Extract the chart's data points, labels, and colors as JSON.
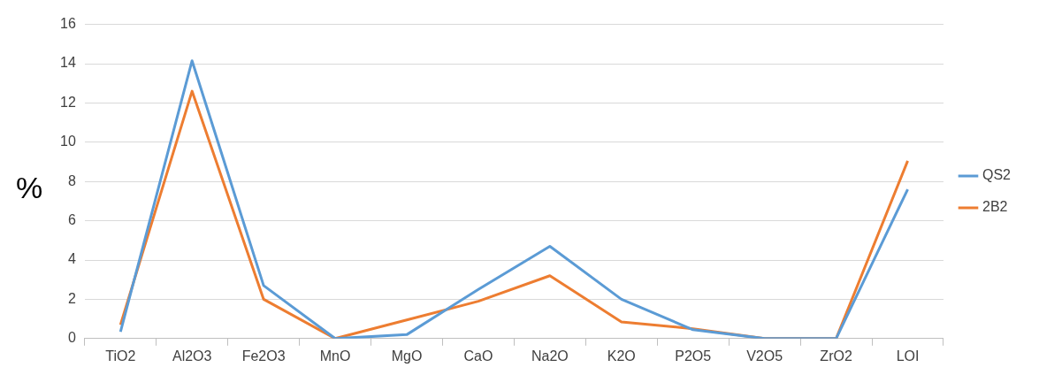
{
  "chart_data": {
    "type": "line",
    "ylabel": "%",
    "categories": [
      "TiO2",
      "Al2O3",
      "Fe2O3",
      "MnO",
      "MgO",
      "CaO",
      "Na2O",
      "K2O",
      "P2O5",
      "V2O5",
      "ZrO2",
      "LOI"
    ],
    "series": [
      {
        "name": "QS2",
        "color": "#5b9bd5",
        "values": [
          0.35,
          14.15,
          2.7,
          0,
          0.2,
          2.5,
          4.7,
          2.0,
          0.45,
          0,
          0,
          7.6
        ]
      },
      {
        "name": "2B2",
        "color": "#ed7d31",
        "values": [
          0.7,
          12.6,
          2.0,
          0,
          0.95,
          1.9,
          3.2,
          0.85,
          0.5,
          0,
          0,
          9.05
        ]
      }
    ],
    "ylim": [
      0,
      16
    ],
    "yticks": [
      0,
      2,
      4,
      6,
      8,
      10,
      12,
      14,
      16
    ],
    "grid": "y",
    "legend": "right",
    "marker": "none",
    "line_style": "solid"
  }
}
